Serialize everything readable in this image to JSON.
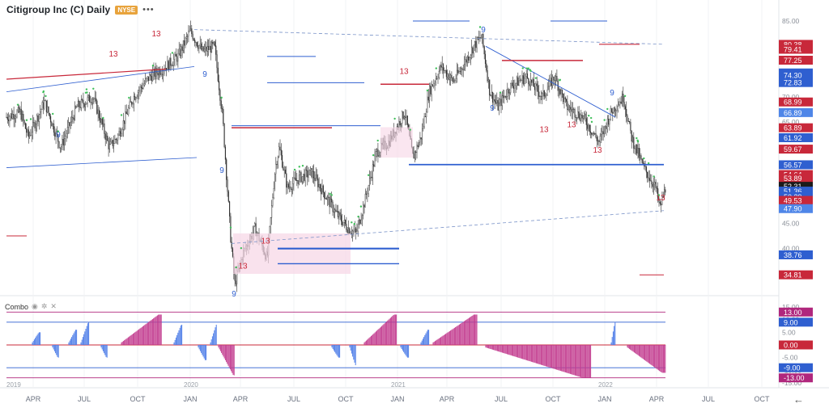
{
  "header": {
    "title": "Citigroup Inc (C) Daily",
    "exchange": "NYSE",
    "more_icon": "ellipsis-icon"
  },
  "indicator": {
    "label": "Combo",
    "icons": [
      "eye-icon",
      "gear-icon",
      "close-icon"
    ]
  },
  "axis": {
    "price_ticks": [
      "85.00",
      "80.00",
      "75.00",
      "70.00",
      "65.00",
      "60.00",
      "55.00",
      "50.00",
      "45.00",
      "40.00",
      "35.00"
    ],
    "indicator_ticks": [
      "15.00",
      "10.00",
      "5.00",
      "0.00",
      "-5.00",
      "-10.00",
      "-15.00"
    ],
    "price_flags": [
      {
        "v": "80.38",
        "c": "#c8283a"
      },
      {
        "v": "79.41",
        "c": "#c8283a"
      },
      {
        "v": "77.25",
        "c": "#c8283a"
      },
      {
        "v": "74.73",
        "c": "#2f5fd0"
      },
      {
        "v": "74.30",
        "c": "#2f5fd0"
      },
      {
        "v": "72.83",
        "c": "#2f5fd0"
      },
      {
        "v": "68.99",
        "c": "#c8283a"
      },
      {
        "v": "66.89",
        "c": "#4f86e8"
      },
      {
        "v": "63.89",
        "c": "#c8283a"
      },
      {
        "v": "61.92",
        "c": "#2f5fd0"
      },
      {
        "v": "59.67",
        "c": "#c8283a"
      },
      {
        "v": "56.57",
        "c": "#2f5fd0"
      },
      {
        "v": "54.64",
        "c": "#c8283a"
      },
      {
        "v": "53.89",
        "c": "#c8283a"
      },
      {
        "v": "52.31",
        "c": "#1b1b1b"
      },
      {
        "v": "51.36",
        "c": "#2f5fd0"
      },
      {
        "v": "50.29",
        "c": "#2f5fd0"
      },
      {
        "v": "49.53",
        "c": "#c8283a"
      },
      {
        "v": "47.90",
        "c": "#4f86e8"
      },
      {
        "v": "38.76",
        "c": "#2f5fd0"
      },
      {
        "v": "34.81",
        "c": "#c8283a"
      }
    ],
    "indicator_flags": [
      {
        "v": "13.00",
        "c": "#b0277d"
      },
      {
        "v": "9.00",
        "c": "#2f5fd0"
      },
      {
        "v": "0.00",
        "c": "#c8283a"
      },
      {
        "v": "-9.00",
        "c": "#2f5fd0"
      },
      {
        "v": "-13.00",
        "c": "#b0277d"
      }
    ],
    "months": [
      {
        "t": "APR",
        "x": 41
      },
      {
        "t": "JUL",
        "x": 104
      },
      {
        "t": "OCT",
        "x": 170
      },
      {
        "t": "JAN",
        "x": 235
      },
      {
        "t": "APR",
        "x": 297
      },
      {
        "t": "JUL",
        "x": 363
      },
      {
        "t": "OCT",
        "x": 427
      },
      {
        "t": "JAN",
        "x": 491
      },
      {
        "t": "APR",
        "x": 552
      },
      {
        "t": "JUL",
        "x": 619
      },
      {
        "t": "OCT",
        "x": 683
      },
      {
        "t": "JAN",
        "x": 747
      },
      {
        "t": "APR",
        "x": 811
      },
      {
        "t": "JUL",
        "x": 875
      },
      {
        "t": "OCT",
        "x": 941
      }
    ],
    "years": [
      {
        "t": "2019",
        "x": 8
      },
      {
        "t": "2020",
        "x": 227
      },
      {
        "t": "2021",
        "x": 483
      },
      {
        "t": "2022",
        "x": 739
      }
    ]
  },
  "chart_data": {
    "type": "candlestick",
    "title": "Citigroup Inc (C) Daily",
    "price_range": [
      30,
      87
    ],
    "series": [
      {
        "name": "price_path",
        "points": [
          [
            0,
            63
          ],
          [
            8,
            66
          ],
          [
            25,
            67
          ],
          [
            35,
            62
          ],
          [
            55,
            69
          ],
          [
            75,
            60
          ],
          [
            95,
            68
          ],
          [
            115,
            70
          ],
          [
            135,
            60
          ],
          [
            145,
            62
          ],
          [
            165,
            70
          ],
          [
            185,
            74
          ],
          [
            205,
            76
          ],
          [
            220,
            78
          ],
          [
            235,
            83
          ],
          [
            250,
            79
          ],
          [
            265,
            80
          ],
          [
            275,
            66
          ],
          [
            285,
            42
          ],
          [
            290,
            33
          ],
          [
            300,
            39
          ],
          [
            315,
            44
          ],
          [
            330,
            38
          ],
          [
            340,
            56
          ],
          [
            345,
            60
          ],
          [
            355,
            52
          ],
          [
            370,
            54
          ],
          [
            385,
            55
          ],
          [
            400,
            51
          ],
          [
            415,
            47
          ],
          [
            430,
            44
          ],
          [
            440,
            43
          ],
          [
            450,
            49
          ],
          [
            465,
            59
          ],
          [
            480,
            61
          ],
          [
            500,
            67
          ],
          [
            510,
            58
          ],
          [
            520,
            62
          ],
          [
            530,
            71
          ],
          [
            545,
            76
          ],
          [
            560,
            73
          ],
          [
            575,
            77
          ],
          [
            585,
            80
          ],
          [
            595,
            82
          ],
          [
            605,
            71
          ],
          [
            615,
            68
          ],
          [
            630,
            72
          ],
          [
            650,
            74
          ],
          [
            670,
            70
          ],
          [
            685,
            74
          ],
          [
            700,
            68
          ],
          [
            720,
            66
          ],
          [
            740,
            61
          ],
          [
            755,
            67
          ],
          [
            770,
            70
          ],
          [
            780,
            62
          ],
          [
            795,
            56
          ],
          [
            810,
            52
          ],
          [
            815,
            48
          ],
          [
            822,
            52
          ]
        ]
      }
    ],
    "indicator": {
      "name": "Combo",
      "range": [
        -15,
        15
      ],
      "levels": [
        13,
        9,
        0,
        -9,
        -13
      ]
    }
  }
}
